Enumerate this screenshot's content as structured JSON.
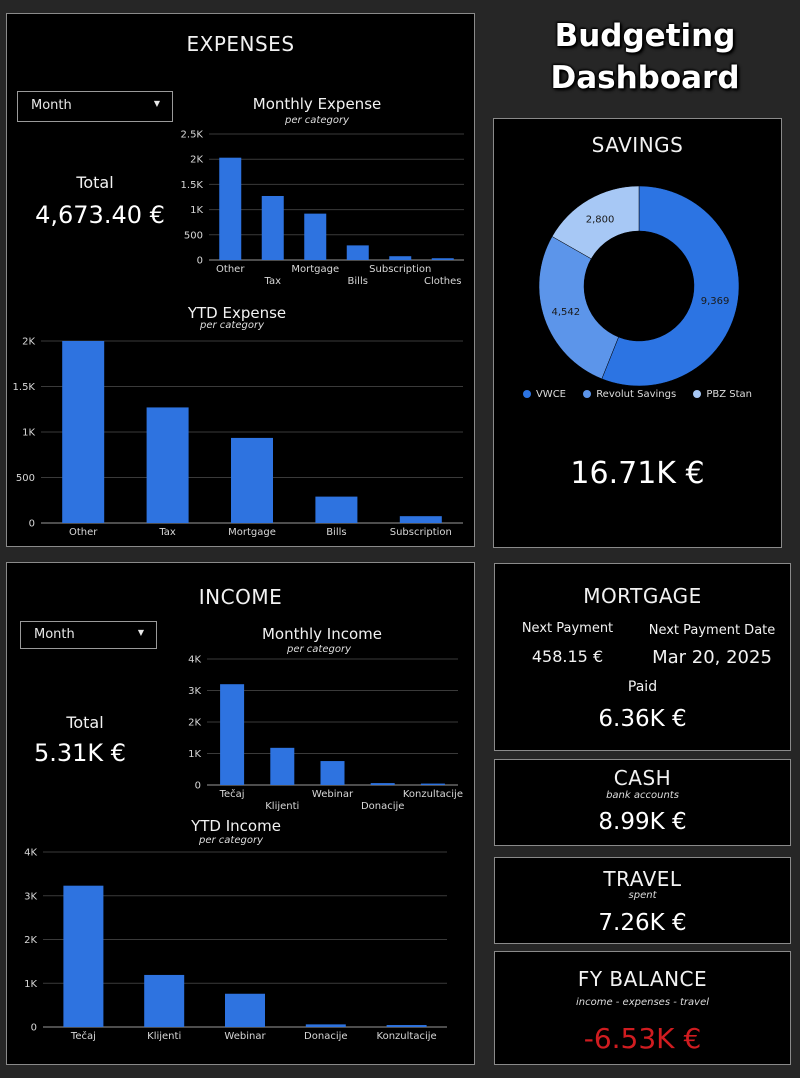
{
  "header": {
    "title_line1": "Budgeting",
    "title_line2": "Dashboard"
  },
  "colors": {
    "bar": "#2e73e0",
    "savings": [
      "#2c74e3",
      "#5c95ea",
      "#a7c8f5"
    ],
    "negative": "#d01c20"
  },
  "expenses": {
    "title": "EXPENSES",
    "period_select": "Month",
    "total_label": "Total",
    "total_value": "4,673.40 €"
  },
  "income": {
    "title": "INCOME",
    "period_select": "Month",
    "total_label": "Total",
    "total_value": "5.31K €"
  },
  "savings": {
    "title": "SAVINGS",
    "total_value": "16.71K €"
  },
  "mortgage": {
    "title": "MORTGAGE",
    "next_payment_label": "Next Payment",
    "next_payment_value": "458.15 €",
    "next_date_label": "Next Payment Date",
    "next_date_value": "Mar 20, 2025",
    "paid_label": "Paid",
    "paid_value": "6.36K €"
  },
  "cash": {
    "title": "CASH",
    "subtitle": "bank accounts",
    "value": "8.99K €"
  },
  "travel": {
    "title": "TRAVEL",
    "subtitle": "spent",
    "value": "7.26K €"
  },
  "fy_balance": {
    "title": "FY BALANCE",
    "subtitle": "income - expenses - travel",
    "value": "-6.53K €"
  },
  "chart_data": [
    {
      "id": "monthly_expense",
      "type": "bar",
      "title": "Monthly Expense",
      "subtitle": "per category",
      "categories": [
        "Other",
        "Tax",
        "Mortgage",
        "Bills",
        "Subscription",
        "Clothes"
      ],
      "values": [
        2030,
        1270,
        920,
        290,
        75,
        35
      ],
      "ylim": [
        0,
        2500
      ],
      "yticks": [
        0,
        500,
        1000,
        1500,
        2000,
        2500
      ],
      "ytick_labels": [
        "0",
        "500",
        "1K",
        "1.5K",
        "2K",
        "2.5K"
      ],
      "grid": true
    },
    {
      "id": "ytd_expense",
      "type": "bar",
      "title": "YTD Expense",
      "subtitle": "per category",
      "categories": [
        "Other",
        "Tax",
        "Mortgage",
        "Bills",
        "Subscription"
      ],
      "values": [
        2000,
        1270,
        935,
        290,
        75
      ],
      "ylim": [
        0,
        2000
      ],
      "yticks": [
        0,
        500,
        1000,
        1500,
        2000
      ],
      "ytick_labels": [
        "0",
        "500",
        "1K",
        "1.5K",
        "2K"
      ],
      "grid": true
    },
    {
      "id": "savings_donut",
      "type": "pie",
      "labels": [
        "VWCE",
        "Revolut Savings",
        "PBZ Stan"
      ],
      "values": [
        9369,
        4542,
        2800
      ],
      "value_labels": [
        "9,369",
        "4,542",
        "2,800"
      ],
      "legend": "bottom"
    },
    {
      "id": "monthly_income",
      "type": "bar",
      "title": "Monthly Income",
      "subtitle": "per category",
      "categories": [
        "Tečaj",
        "Klijenti",
        "Webinar",
        "Donacije",
        "Konzultacije"
      ],
      "values": [
        3200,
        1180,
        760,
        60,
        45
      ],
      "ylim": [
        0,
        4000
      ],
      "yticks": [
        0,
        1000,
        2000,
        3000,
        4000
      ],
      "ytick_labels": [
        "0",
        "1K",
        "2K",
        "3K",
        "4K"
      ],
      "grid": true
    },
    {
      "id": "ytd_income",
      "type": "bar",
      "title": "YTD Income",
      "subtitle": "per category",
      "categories": [
        "Tečaj",
        "Klijenti",
        "Webinar",
        "Donacije",
        "Konzultacije"
      ],
      "values": [
        3230,
        1190,
        760,
        60,
        45
      ],
      "ylim": [
        0,
        4000
      ],
      "yticks": [
        0,
        1000,
        2000,
        3000,
        4000
      ],
      "ytick_labels": [
        "0",
        "1K",
        "2K",
        "3K",
        "4K"
      ],
      "grid": true
    }
  ]
}
